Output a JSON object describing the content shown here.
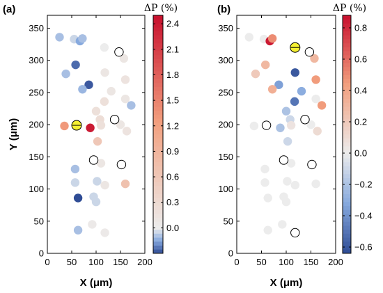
{
  "chart_data": [
    {
      "panel_label": "(a)",
      "type": "scatter",
      "xlabel": "X (μm)",
      "ylabel": "Y (μm)",
      "xlim": [
        0,
        200
      ],
      "ylim": [
        0,
        370
      ],
      "xticks": [
        0,
        50,
        100,
        150,
        200
      ],
      "yticks": [
        0,
        50,
        100,
        150,
        200,
        250,
        300,
        350
      ],
      "colorbar": {
        "title": "ΔP (%)",
        "range": [
          -0.3,
          2.5
        ],
        "ticks": [
          0.0,
          0.3,
          0.6,
          0.9,
          1.2,
          1.5,
          1.8,
          2.1,
          2.4
        ]
      },
      "highlighted_point": [
        60,
        199
      ],
      "open_circles": [
        [
          147,
          313
        ],
        [
          138,
          208
        ],
        [
          95,
          145
        ],
        [
          152,
          138
        ]
      ],
      "points": [
        {
          "x": 25,
          "y": 336,
          "v": -0.1
        },
        {
          "x": 55,
          "y": 333,
          "v": -0.05
        },
        {
          "x": 67,
          "y": 330,
          "v": -0.15
        },
        {
          "x": 72,
          "y": 334,
          "v": -0.1
        },
        {
          "x": 117,
          "y": 320,
          "v": 0.0
        },
        {
          "x": 58,
          "y": 293,
          "v": -0.25
        },
        {
          "x": 38,
          "y": 279,
          "v": -0.1
        },
        {
          "x": 118,
          "y": 281,
          "v": 0.1
        },
        {
          "x": 157,
          "y": 303,
          "v": 0.1
        },
        {
          "x": 160,
          "y": 270,
          "v": 0.15
        },
        {
          "x": 85,
          "y": 262,
          "v": -0.28
        },
        {
          "x": 72,
          "y": 255,
          "v": -0.12
        },
        {
          "x": 131,
          "y": 252,
          "v": 0.1
        },
        {
          "x": 117,
          "y": 236,
          "v": 0.2
        },
        {
          "x": 160,
          "y": 240,
          "v": 0.1
        },
        {
          "x": 172,
          "y": 230,
          "v": -0.1
        },
        {
          "x": 100,
          "y": 221,
          "v": 0.2
        },
        {
          "x": 108,
          "y": 208,
          "v": 0.25
        },
        {
          "x": 110,
          "y": 199,
          "v": 0.2
        },
        {
          "x": 150,
          "y": 200,
          "v": 0.1
        },
        {
          "x": 163,
          "y": 190,
          "v": 0.15
        },
        {
          "x": 35,
          "y": 198,
          "v": 1.3
        },
        {
          "x": 88,
          "y": 195,
          "v": 2.4
        },
        {
          "x": 103,
          "y": 174,
          "v": 0.6
        },
        {
          "x": 110,
          "y": 140,
          "v": 0.1
        },
        {
          "x": 57,
          "y": 131,
          "v": -0.1
        },
        {
          "x": 57,
          "y": 110,
          "v": -0.05
        },
        {
          "x": 102,
          "y": 112,
          "v": -0.05
        },
        {
          "x": 118,
          "y": 106,
          "v": 0.1
        },
        {
          "x": 160,
          "y": 108,
          "v": 0.7
        },
        {
          "x": 63,
          "y": 86,
          "v": -0.3
        },
        {
          "x": 95,
          "y": 88,
          "v": -0.05
        },
        {
          "x": 100,
          "y": 80,
          "v": -0.05
        },
        {
          "x": 92,
          "y": 45,
          "v": 0.05
        },
        {
          "x": 63,
          "y": 36,
          "v": -0.1
        },
        {
          "x": 118,
          "y": 32,
          "v": 0.05
        }
      ]
    },
    {
      "panel_label": "(b)",
      "type": "scatter",
      "xlabel": "X (μm)",
      "ylabel": "",
      "xlim": [
        0,
        200
      ],
      "ylim": [
        0,
        370
      ],
      "xticks": [
        0,
        50,
        100,
        150,
        200
      ],
      "yticks": [
        0,
        50,
        100,
        150,
        200,
        250,
        300,
        350
      ],
      "colorbar": {
        "title": "ΔP (%)",
        "range": [
          -0.64,
          0.88
        ],
        "ticks": [
          -0.6,
          -0.4,
          -0.2,
          0.0,
          0.2,
          0.4,
          0.6,
          0.8
        ]
      },
      "highlighted_point": [
        118,
        320
      ],
      "open_circles": [
        [
          147,
          313
        ],
        [
          60,
          199
        ],
        [
          138,
          208
        ],
        [
          95,
          145
        ],
        [
          152,
          138
        ],
        [
          118,
          32
        ]
      ],
      "points": [
        {
          "x": 25,
          "y": 336,
          "v": 0.0
        },
        {
          "x": 55,
          "y": 333,
          "v": 0.0
        },
        {
          "x": 67,
          "y": 330,
          "v": 0.85
        },
        {
          "x": 72,
          "y": 334,
          "v": 0.5
        },
        {
          "x": 58,
          "y": 293,
          "v": 0.3
        },
        {
          "x": 38,
          "y": 279,
          "v": 0.2
        },
        {
          "x": 118,
          "y": 281,
          "v": -0.6
        },
        {
          "x": 157,
          "y": 303,
          "v": 0.3
        },
        {
          "x": 160,
          "y": 270,
          "v": 0.45
        },
        {
          "x": 85,
          "y": 262,
          "v": -0.35
        },
        {
          "x": 72,
          "y": 255,
          "v": 0.35
        },
        {
          "x": 131,
          "y": 252,
          "v": -0.3
        },
        {
          "x": 117,
          "y": 236,
          "v": -0.5
        },
        {
          "x": 160,
          "y": 240,
          "v": 0.0
        },
        {
          "x": 172,
          "y": 230,
          "v": 0.45
        },
        {
          "x": 100,
          "y": 221,
          "v": -0.2
        },
        {
          "x": 108,
          "y": 208,
          "v": -0.1
        },
        {
          "x": 110,
          "y": 199,
          "v": 0.05
        },
        {
          "x": 150,
          "y": 200,
          "v": 0.0
        },
        {
          "x": 163,
          "y": 190,
          "v": 0.1
        },
        {
          "x": 35,
          "y": 198,
          "v": 0.0
        },
        {
          "x": 88,
          "y": 195,
          "v": -0.2
        },
        {
          "x": 103,
          "y": 174,
          "v": -0.1
        },
        {
          "x": 110,
          "y": 140,
          "v": 0.0
        },
        {
          "x": 57,
          "y": 131,
          "v": 0.0
        },
        {
          "x": 57,
          "y": 110,
          "v": 0.0
        },
        {
          "x": 102,
          "y": 112,
          "v": 0.0
        },
        {
          "x": 118,
          "y": 106,
          "v": 0.0
        },
        {
          "x": 160,
          "y": 108,
          "v": 0.0
        },
        {
          "x": 63,
          "y": 86,
          "v": 0.0
        },
        {
          "x": 95,
          "y": 88,
          "v": 0.0
        },
        {
          "x": 100,
          "y": 80,
          "v": 0.0
        },
        {
          "x": 92,
          "y": 45,
          "v": 0.0
        },
        {
          "x": 63,
          "y": 36,
          "v": 0.0
        }
      ]
    }
  ]
}
